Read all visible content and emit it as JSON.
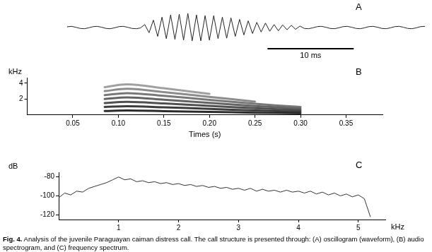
{
  "chart_data": [
    {
      "panel": "A",
      "type": "line",
      "color": "#222222",
      "tick_labels": false,
      "grid": false,
      "xlim": [
        0,
        41.5
      ],
      "ylim": [
        -1,
        1
      ],
      "scale_bar": {
        "value": 10,
        "label": "10 ms"
      },
      "x": [
        0,
        0.5,
        1,
        1.5,
        2,
        2.5,
        3,
        3.5,
        4,
        4.5,
        5,
        5.5,
        6,
        6.5,
        7,
        7.5,
        8,
        8.5,
        9,
        9.5,
        10,
        10.5,
        11,
        11.5,
        12,
        12.5,
        13,
        13.5,
        14,
        14.5,
        15,
        15.5,
        16,
        16.5,
        17,
        17.5,
        18,
        18.5,
        19,
        19.5,
        20,
        20.5,
        21,
        21.5,
        22,
        22.5,
        23,
        23.5,
        24,
        24.5,
        25,
        25.5,
        26,
        26.5,
        27,
        27.5,
        28,
        28.5,
        29,
        29.5,
        30,
        30.5,
        31,
        31.5,
        32,
        32.5,
        33,
        33.5,
        34,
        34.5,
        35,
        35.5,
        36,
        36.5,
        37,
        37.5,
        38,
        38.5,
        39,
        39.5,
        40,
        40.5,
        41,
        41.5
      ],
      "values": [
        0.05,
        0.08,
        0.02,
        -0.06,
        -0.08,
        -0.02,
        0.06,
        0.08,
        0.02,
        -0.06,
        -0.08,
        -0.02,
        0.06,
        0.08,
        0.02,
        -0.06,
        -0.08,
        -0.03,
        0.2,
        -0.35,
        0.5,
        -0.6,
        0.7,
        -0.75,
        0.85,
        -0.8,
        0.9,
        -0.85,
        0.95,
        -0.9,
        0.85,
        -0.9,
        0.8,
        -0.85,
        0.8,
        -0.75,
        0.7,
        -0.72,
        0.65,
        -0.6,
        0.55,
        -0.5,
        0.45,
        -0.4,
        0.35,
        -0.3,
        0.3,
        -0.25,
        0.2,
        -0.22,
        0.18,
        -0.15,
        0.15,
        -0.12,
        0.1,
        -0.06,
        -0.08,
        -0.02,
        0.06,
        0.08,
        0.02,
        -0.06,
        -0.08,
        -0.02,
        0.06,
        0.08,
        0.02,
        -0.06,
        -0.08,
        -0.02,
        0.06,
        0.08,
        0.02,
        -0.06,
        -0.08,
        -0.02,
        0.06,
        0.08,
        0.02,
        -0.06,
        -0.08,
        -0.02,
        0.06,
        0.08
      ]
    },
    {
      "panel": "B",
      "type": "line",
      "grid": false,
      "xlabel": "Times (s)",
      "ylabel": "kHz",
      "xlim": [
        0,
        0.39
      ],
      "ylim": [
        0,
        4.7
      ],
      "xticks": [
        0.05,
        {
          "value": 0.1,
          "label": "0.10"
        },
        0.15,
        {
          "value": 0.2,
          "label": "0.20"
        },
        0.25,
        {
          "value": 0.3,
          "label": "0.30"
        },
        0.35
      ],
      "yticks": [
        2,
        4
      ],
      "x": [
        0.085,
        0.11,
        0.15,
        0.2,
        0.25,
        0.3
      ],
      "series": [
        {
          "color": "#2b2b2b",
          "values": [
            0.5,
            0.55,
            0.48,
            0.38,
            0.28,
            0.2
          ]
        },
        {
          "color": "#3c3c3c",
          "values": [
            1.0,
            1.1,
            0.96,
            0.76,
            0.56,
            0.4
          ]
        },
        {
          "color": "#505050",
          "values": [
            1.5,
            1.65,
            1.44,
            1.14,
            0.84,
            0.6
          ]
        },
        {
          "color": "#646464",
          "values": [
            2.0,
            2.2,
            1.92,
            1.52,
            1.12,
            0.8
          ]
        },
        {
          "color": "#787878",
          "values": [
            2.5,
            2.75,
            2.4,
            1.9,
            1.4,
            1.0
          ]
        },
        {
          "color": "#8c8c8c",
          "values": [
            3.0,
            3.3,
            2.88,
            2.28,
            1.68,
            null
          ]
        },
        {
          "color": "#a0a0a0",
          "values": [
            3.5,
            3.85,
            3.36,
            2.66,
            null,
            null
          ]
        }
      ]
    },
    {
      "panel": "C",
      "type": "line",
      "color": "#333333",
      "grid": false,
      "xlabel": "kHz",
      "ylabel": "dB",
      "xlim": [
        0,
        5.45
      ],
      "ylim": [
        -125,
        -75
      ],
      "xticks": [
        1,
        2,
        3,
        4,
        5
      ],
      "yticks": [
        -80,
        -100,
        -120
      ],
      "x": [
        0,
        0.1,
        0.2,
        0.3,
        0.4,
        0.5,
        0.6,
        0.7,
        0.8,
        0.9,
        1,
        1.1,
        1.2,
        1.3,
        1.4,
        1.5,
        1.6,
        1.7,
        1.8,
        1.9,
        2,
        2.1,
        2.2,
        2.3,
        2.4,
        2.5,
        2.6,
        2.7,
        2.8,
        2.9,
        3,
        3.1,
        3.2,
        3.3,
        3.4,
        3.5,
        3.6,
        3.7,
        3.8,
        3.9,
        4,
        4.1,
        4.2,
        4.3,
        4.4,
        4.5,
        4.6,
        4.7,
        4.8,
        4.9,
        5,
        5.1,
        5.2
      ],
      "values": [
        -102,
        -97,
        -99,
        -95,
        -96,
        -92,
        -90,
        -88,
        -86,
        -83,
        -80,
        -83,
        -82,
        -85,
        -84,
        -86,
        -85,
        -87,
        -86,
        -88,
        -87,
        -89,
        -88,
        -90,
        -89,
        -91,
        -90,
        -92,
        -91,
        -93,
        -92,
        -94,
        -92,
        -95,
        -93,
        -95,
        -94,
        -96,
        -94,
        -96,
        -95,
        -97,
        -95,
        -98,
        -96,
        -99,
        -97,
        -100,
        -98,
        -101,
        -99,
        -103,
        -122
      ]
    }
  ],
  "caption": {
    "label": "Fig. 4.",
    "text": "Analysis of the juvenile Paraguayan caiman distress call. The call structure is presented through: (A) oscillogram (waveform), (B) audio spectrogram, and (C) frequency spectrum."
  }
}
